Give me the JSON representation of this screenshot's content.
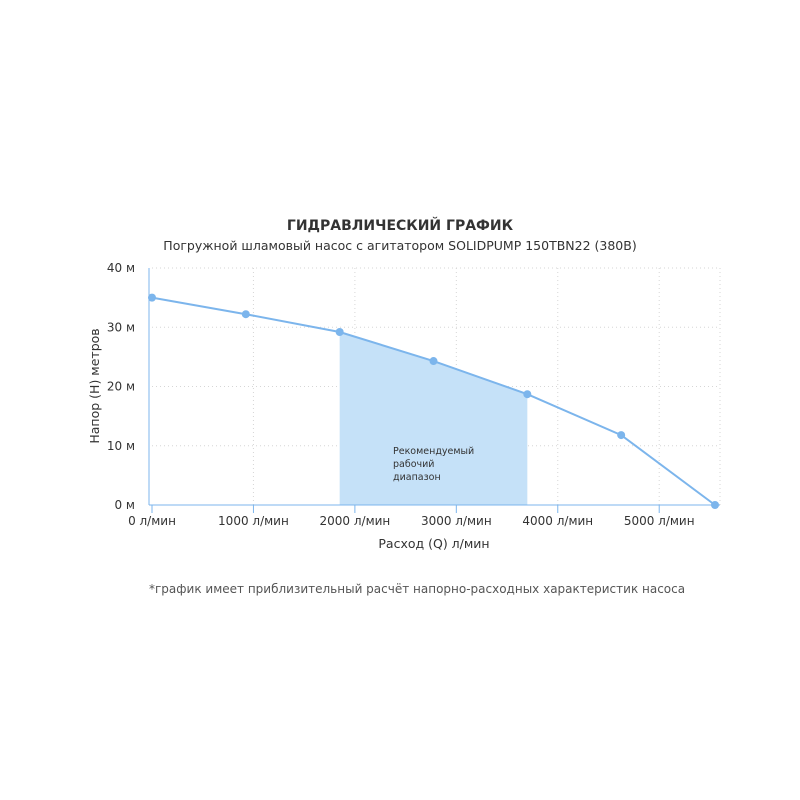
{
  "chart_data": {
    "type": "line",
    "title": "ГИДРАВЛИЧЕСКИЙ ГРАФИК",
    "subtitle": "Погружной шламовый насос с агитатором SOLIDPUMP 150TBN22 (380В)",
    "xlabel": "Расход (Q) л/мин",
    "ylabel": "Напор (H) метров",
    "xlim": [
      0,
      5550
    ],
    "ylim": [
      0,
      40
    ],
    "x_ticks": [
      0,
      1000,
      2000,
      3000,
      4000,
      5000
    ],
    "x_tick_labels": [
      "0 л/мин",
      "1000 л/мин",
      "2000 л/мин",
      "3000 л/мин",
      "4000 л/мин",
      "5000 л/мин"
    ],
    "y_ticks": [
      0,
      10,
      20,
      30,
      40
    ],
    "y_tick_labels": [
      "0 м",
      "10 м",
      "20 м",
      "30 м",
      "40 м"
    ],
    "grid": true,
    "series": [
      {
        "x": [
          0,
          925,
          1850,
          2775,
          3700,
          4625,
          5550
        ],
        "y": [
          35,
          32.2,
          29.2,
          24.3,
          18.7,
          11.8,
          0
        ],
        "color": "#7cb5ec"
      }
    ],
    "recommended_range": {
      "x": [
        1850,
        3700
      ],
      "label_lines": [
        "Рекомендуемый",
        "рабочий",
        "диапазон"
      ],
      "color": "#c5e1f8"
    },
    "footnote": "*график имеет приблизительный расчёт напорно-расходных характеристик насоса"
  }
}
